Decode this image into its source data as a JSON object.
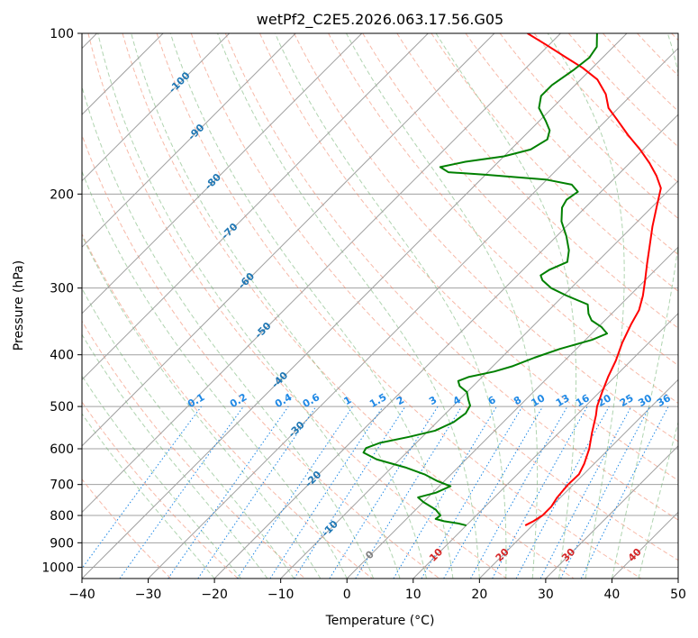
{
  "chart_data": {
    "type": "line",
    "title": "wetPf2_C2E5.2026.063.17.56.G05",
    "xlabel": "Temperature (°C)",
    "ylabel": "Pressure (hPa)",
    "xlim": [
      -40,
      50
    ],
    "ylim": [
      1050,
      100
    ],
    "y_scale": "log",
    "grid": true,
    "x_ticks": [
      -40,
      -30,
      -20,
      -10,
      0,
      10,
      20,
      30,
      40,
      50
    ],
    "y_ticks": [
      100,
      200,
      300,
      400,
      500,
      600,
      700,
      800,
      900,
      1000
    ],
    "colors": {
      "temperature": "#ff0000",
      "dewpoint": "#008000",
      "isotherm": "#a0a0a0",
      "dry_adiabat": "#f08060",
      "moist_adiabat": "#70b070",
      "mixing_ratio": "#1e88e5",
      "isotherm_label": "#1f77b4",
      "positive_label": "#d62728",
      "zero_label": "#808080"
    },
    "isotherm_labels": [
      "-100",
      "-90",
      "-80",
      "-70",
      "-60",
      "-50",
      "-40",
      "-30",
      "-20",
      "-10",
      "0",
      "10",
      "20",
      "30",
      "40"
    ],
    "mixing_ratio_labels": [
      "0.1",
      "0.2",
      "0.4",
      "0.6",
      "1",
      "1.5",
      "2",
      "3",
      "4",
      "6",
      "8",
      "10",
      "13",
      "16",
      "20",
      "25",
      "30",
      "36"
    ],
    "series": [
      {
        "name": "",
        "role": "temperature",
        "points": [
          {
            "p": 835,
            "t": 18.9
          },
          {
            "p": 820,
            "t": 19.5
          },
          {
            "p": 800,
            "t": 20.0
          },
          {
            "p": 770,
            "t": 20.0
          },
          {
            "p": 740,
            "t": 19.5
          },
          {
            "p": 700,
            "t": 19.2
          },
          {
            "p": 670,
            "t": 19.3
          },
          {
            "p": 640,
            "t": 18.5
          },
          {
            "p": 600,
            "t": 17.0
          },
          {
            "p": 560,
            "t": 15.0
          },
          {
            "p": 520,
            "t": 13.0
          },
          {
            "p": 500,
            "t": 11.8
          },
          {
            "p": 470,
            "t": 10.4
          },
          {
            "p": 440,
            "t": 9.0
          },
          {
            "p": 410,
            "t": 7.7
          },
          {
            "p": 380,
            "t": 6.0
          },
          {
            "p": 350,
            "t": 4.5
          },
          {
            "p": 330,
            "t": 3.6
          },
          {
            "p": 310,
            "t": 2.0
          },
          {
            "p": 290,
            "t": 0.0
          },
          {
            "p": 270,
            "t": -2.2
          },
          {
            "p": 250,
            "t": -4.5
          },
          {
            "p": 230,
            "t": -7.0
          },
          {
            "p": 210,
            "t": -9.5
          },
          {
            "p": 195,
            "t": -11.5
          },
          {
            "p": 185,
            "t": -14.0
          },
          {
            "p": 175,
            "t": -17.0
          },
          {
            "p": 165,
            "t": -20.5
          },
          {
            "p": 155,
            "t": -24.5
          },
          {
            "p": 145,
            "t": -28.5
          },
          {
            "p": 138,
            "t": -31.5
          },
          {
            "p": 130,
            "t": -34.0
          },
          {
            "p": 122,
            "t": -37.5
          },
          {
            "p": 116,
            "t": -41.5
          },
          {
            "p": 111,
            "t": -45.5
          },
          {
            "p": 105,
            "t": -50.5
          },
          {
            "p": 100,
            "t": -55.0
          }
        ]
      },
      {
        "name": "",
        "role": "dewpoint",
        "points": [
          {
            "p": 835,
            "t": 10.0
          },
          {
            "p": 828,
            "t": 8.5
          },
          {
            "p": 820,
            "t": 6.0
          },
          {
            "p": 812,
            "t": 4.4
          },
          {
            "p": 800,
            "t": 4.6
          },
          {
            "p": 780,
            "t": 3.0
          },
          {
            "p": 755,
            "t": 0.0
          },
          {
            "p": 740,
            "t": -1.5
          },
          {
            "p": 725,
            "t": 0.5
          },
          {
            "p": 705,
            "t": 1.7
          },
          {
            "p": 690,
            "t": -1.0
          },
          {
            "p": 670,
            "t": -4.0
          },
          {
            "p": 650,
            "t": -8.0
          },
          {
            "p": 628,
            "t": -13.5
          },
          {
            "p": 610,
            "t": -16.5
          },
          {
            "p": 598,
            "t": -16.8
          },
          {
            "p": 585,
            "t": -15.5
          },
          {
            "p": 570,
            "t": -12.0
          },
          {
            "p": 555,
            "t": -9.0
          },
          {
            "p": 535,
            "t": -7.5
          },
          {
            "p": 515,
            "t": -7.0
          },
          {
            "p": 498,
            "t": -7.5
          },
          {
            "p": 485,
            "t": -8.7
          },
          {
            "p": 470,
            "t": -10.0
          },
          {
            "p": 458,
            "t": -12.0
          },
          {
            "p": 448,
            "t": -13.0
          },
          {
            "p": 440,
            "t": -12.0
          },
          {
            "p": 430,
            "t": -9.0
          },
          {
            "p": 420,
            "t": -7.0
          },
          {
            "p": 405,
            "t": -5.0
          },
          {
            "p": 390,
            "t": -2.5
          },
          {
            "p": 375,
            "t": 1.0
          },
          {
            "p": 365,
            "t": 2.3
          },
          {
            "p": 355,
            "t": 0.5
          },
          {
            "p": 345,
            "t": -2.0
          },
          {
            "p": 335,
            "t": -3.5
          },
          {
            "p": 322,
            "t": -5.0
          },
          {
            "p": 310,
            "t": -9.5
          },
          {
            "p": 300,
            "t": -13.0
          },
          {
            "p": 290,
            "t": -15.5
          },
          {
            "p": 284,
            "t": -16.5
          },
          {
            "p": 277,
            "t": -16.0
          },
          {
            "p": 268,
            "t": -14.5
          },
          {
            "p": 255,
            "t": -16.0
          },
          {
            "p": 240,
            "t": -18.5
          },
          {
            "p": 225,
            "t": -21.5
          },
          {
            "p": 212,
            "t": -23.5
          },
          {
            "p": 205,
            "t": -24.0
          },
          {
            "p": 198,
            "t": -23.5
          },
          {
            "p": 192,
            "t": -25.5
          },
          {
            "p": 188,
            "t": -30.0
          },
          {
            "p": 184,
            "t": -40.0
          },
          {
            "p": 182,
            "t": -46.0
          },
          {
            "p": 178,
            "t": -48.0
          },
          {
            "p": 174,
            "t": -45.0
          },
          {
            "p": 170,
            "t": -40.0
          },
          {
            "p": 165,
            "t": -37.0
          },
          {
            "p": 158,
            "t": -36.0
          },
          {
            "p": 152,
            "t": -37.0
          },
          {
            "p": 146,
            "t": -39.0
          },
          {
            "p": 138,
            "t": -42.0
          },
          {
            "p": 131,
            "t": -43.5
          },
          {
            "p": 125,
            "t": -43.5
          },
          {
            "p": 117,
            "t": -42.5
          },
          {
            "p": 111,
            "t": -42.0
          },
          {
            "p": 106,
            "t": -42.5
          },
          {
            "p": 100,
            "t": -44.5
          }
        ]
      }
    ]
  }
}
